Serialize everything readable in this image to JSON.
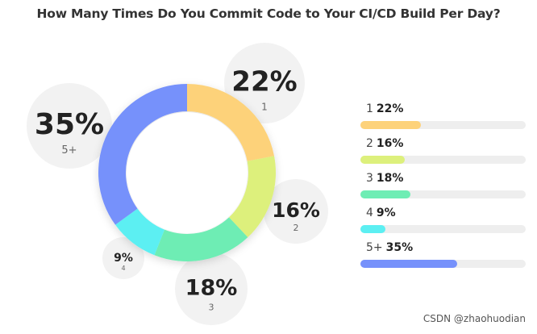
{
  "chart_data": {
    "type": "pie",
    "title": "How Many Times Do You Commit Code to Your CI/CD Build Per Day?",
    "donut": true,
    "categories": [
      "1",
      "2",
      "3",
      "4",
      "5+"
    ],
    "values": [
      22,
      16,
      18,
      9,
      35
    ],
    "value_labels": [
      "22%",
      "16%",
      "18%",
      "9%",
      "35%"
    ],
    "unit": "%",
    "colors": [
      "#fdd27a",
      "#ddf07c",
      "#6eedb4",
      "#5ceff2",
      "#7691fb"
    ],
    "legend_position": "right",
    "legend_max": 60
  },
  "watermark": "CSDN @zhaohuodian"
}
